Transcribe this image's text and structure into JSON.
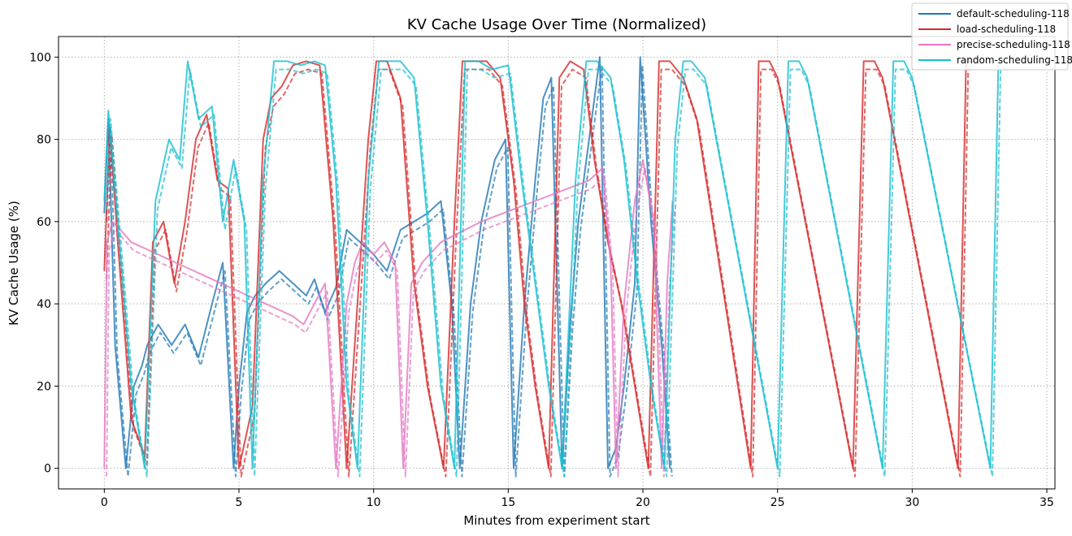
{
  "chart_data": {
    "type": "line",
    "title": "KV Cache Usage Over Time (Normalized)",
    "xlabel": "Minutes from experiment start",
    "ylabel": "KV Cache Usage (%)",
    "xlim": [
      -1.7,
      35.3
    ],
    "ylim": [
      -5,
      105
    ],
    "xticks": [
      0,
      5,
      10,
      15,
      20,
      25,
      30,
      35
    ],
    "yticks": [
      0,
      20,
      40,
      60,
      80,
      100
    ],
    "grid": true,
    "legend_position": "top-right",
    "series": [
      {
        "name": "default-scheduling-118",
        "color": "#1f77b4",
        "x": [
          0,
          0.15,
          0.4,
          0.8,
          1.1,
          1.4,
          1.6,
          2.0,
          2.5,
          3.0,
          3.5,
          4.0,
          4.4,
          4.8,
          5.0,
          5.3,
          5.6,
          6.0,
          6.5,
          7.0,
          7.5,
          7.8,
          8.2,
          8.6,
          9.0,
          9.5,
          10.0,
          10.5,
          11.0,
          11.5,
          12.0,
          12.5,
          12.9,
          13.2,
          13.6,
          14.0,
          14.5,
          14.9,
          15.2,
          15.6,
          16.0,
          16.3,
          16.6,
          17.0,
          17.3,
          17.6,
          18.0,
          18.4,
          18.7,
          19.0,
          19.3,
          19.7,
          19.9,
          20.3,
          20.7,
          21.0
        ],
        "values": [
          62,
          85,
          30,
          0,
          20,
          25,
          30,
          35,
          30,
          35,
          27,
          40,
          50,
          0,
          20,
          38,
          42,
          45,
          48,
          45,
          42,
          46,
          38,
          44,
          58,
          55,
          52,
          48,
          58,
          60,
          62,
          65,
          40,
          0,
          40,
          60,
          75,
          80,
          0,
          40,
          70,
          90,
          95,
          0,
          35,
          60,
          80,
          100,
          0,
          5,
          20,
          45,
          100,
          60,
          30,
          0
        ]
      },
      {
        "name": "load-scheduling-118",
        "color": "#d62728",
        "x": [
          0,
          0.2,
          0.5,
          1.0,
          1.5,
          1.8,
          2.2,
          2.6,
          3.0,
          3.4,
          3.8,
          4.2,
          4.6,
          5.0,
          5.5,
          5.9,
          6.2,
          6.6,
          7.0,
          7.5,
          8.0,
          8.5,
          9.0,
          9.4,
          9.8,
          10.1,
          10.5,
          11.0,
          11.5,
          12.0,
          12.6,
          13.0,
          13.3,
          13.7,
          14.2,
          14.7,
          15.2,
          15.6,
          16.0,
          16.5,
          16.9,
          17.3,
          17.8,
          18.2,
          18.7,
          19.2,
          19.7,
          20.2,
          20.6,
          21.0,
          21.5,
          22.0,
          24.0,
          24.3,
          24.7,
          25.0,
          27.8,
          28.2,
          28.6,
          28.9,
          31.7,
          32.0,
          32.3
        ],
        "values": [
          48,
          83,
          55,
          12,
          3,
          55,
          60,
          45,
          60,
          80,
          86,
          70,
          68,
          0,
          15,
          80,
          90,
          93,
          98,
          99,
          98,
          60,
          0,
          40,
          80,
          99,
          99,
          90,
          45,
          20,
          0,
          60,
          99,
          99,
          99,
          95,
          70,
          40,
          20,
          0,
          95,
          99,
          97,
          75,
          55,
          40,
          20,
          0,
          99,
          99,
          95,
          85,
          0,
          99,
          99,
          95,
          0,
          99,
          99,
          95,
          0,
          99,
          99
        ]
      },
      {
        "name": "precise-scheduling-118",
        "color": "#e377c2",
        "x": [
          0,
          0.1,
          0.3,
          0.6,
          1.0,
          2.0,
          3.0,
          4.0,
          5.0,
          6.0,
          7.0,
          7.4,
          7.8,
          8.2,
          8.6,
          9.0,
          9.3,
          9.6,
          10.0,
          10.4,
          10.8,
          11.1,
          11.4,
          11.8,
          12.5,
          14.0,
          16.0,
          18.0,
          18.5,
          18.8,
          19.0,
          19.3,
          19.7,
          20.0,
          20.4,
          20.7,
          20.9,
          21.1
        ],
        "values": [
          0,
          55,
          60,
          58,
          55,
          52,
          49,
          46,
          43,
          40,
          37,
          35,
          40,
          45,
          0,
          40,
          50,
          55,
          52,
          55,
          50,
          0,
          45,
          50,
          55,
          60,
          65,
          70,
          73,
          50,
          0,
          40,
          65,
          75,
          60,
          0,
          45,
          65
        ]
      },
      {
        "name": "random-scheduling-118",
        "color": "#17becf",
        "x": [
          0,
          0.15,
          0.5,
          1.0,
          1.5,
          1.9,
          2.4,
          2.8,
          3.1,
          3.5,
          4.0,
          4.4,
          4.8,
          5.2,
          5.5,
          5.9,
          6.3,
          6.8,
          7.3,
          7.8,
          8.2,
          8.6,
          9.0,
          9.4,
          9.8,
          10.2,
          10.6,
          11.0,
          11.5,
          12.0,
          12.5,
          13.0,
          13.4,
          13.9,
          14.4,
          15.0,
          15.5,
          16.0,
          16.5,
          17.0,
          17.5,
          17.9,
          18.3,
          18.8,
          19.3,
          19.8,
          20.3,
          20.8,
          21.2,
          21.5,
          21.8,
          22.3,
          25.0,
          25.4,
          25.8,
          26.1,
          28.9,
          29.3,
          29.7,
          30.0,
          32.9,
          33.2,
          33.5
        ],
        "values": [
          65,
          87,
          60,
          20,
          0,
          65,
          80,
          75,
          99,
          85,
          88,
          60,
          75,
          60,
          0,
          70,
          99,
          99,
          98,
          99,
          98,
          70,
          20,
          0,
          70,
          99,
          99,
          99,
          95,
          60,
          20,
          0,
          99,
          99,
          97,
          98,
          70,
          45,
          20,
          0,
          70,
          99,
          99,
          95,
          75,
          45,
          20,
          0,
          80,
          99,
          99,
          95,
          0,
          99,
          99,
          95,
          0,
          99,
          99,
          95,
          0,
          99,
          99
        ]
      }
    ]
  }
}
